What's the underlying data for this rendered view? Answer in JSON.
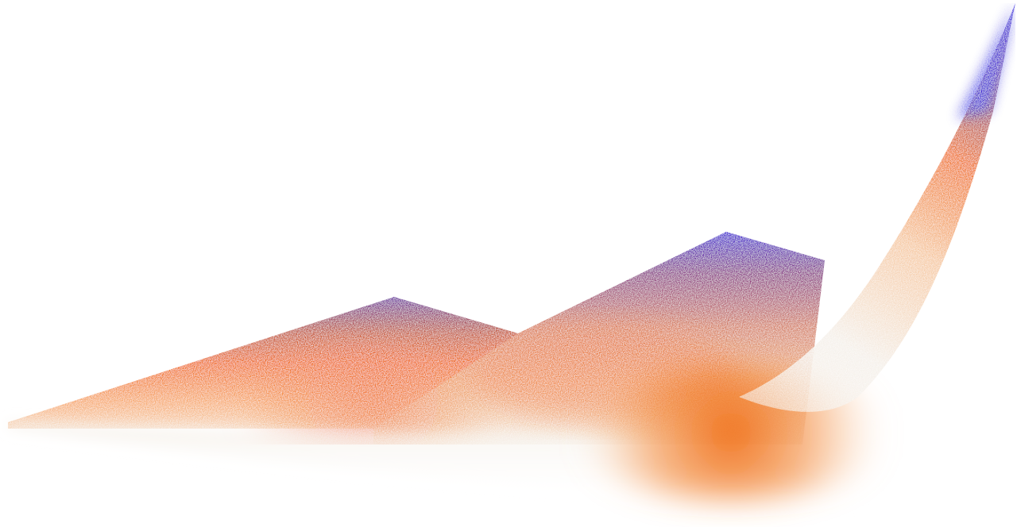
{
  "artwork": {
    "kind": "abstract gradient mountain ridge",
    "colors": {
      "background": "#ffffff",
      "ridge_top": "#2a10e0",
      "mid_purple": "#8a3a8a",
      "orange": "#f06a10",
      "light_orange": "#f7a86a",
      "cream": "#f4eee6",
      "right_blue": "#3a2ae6"
    },
    "texture": "grain-noise"
  }
}
